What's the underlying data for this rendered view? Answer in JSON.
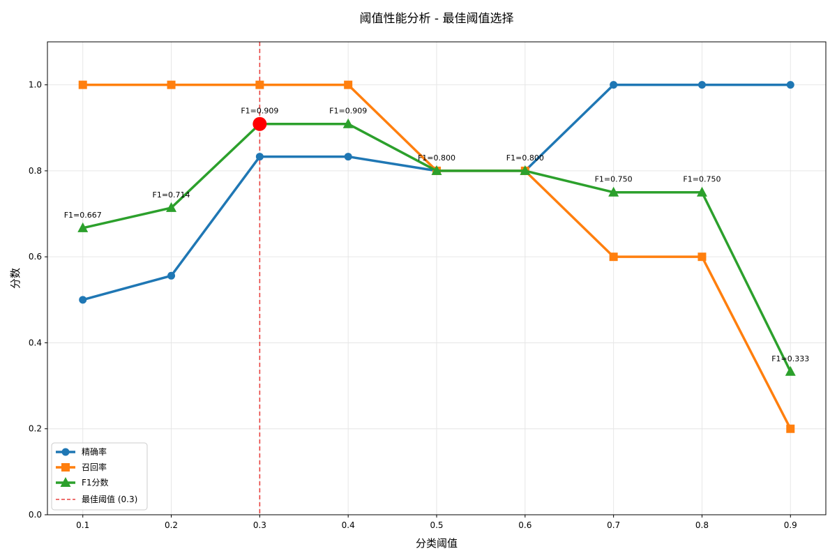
{
  "chart_data": {
    "type": "line",
    "title": "阈值性能分析 - 最佳阈值选择",
    "xlabel": "分类阈值",
    "ylabel": "分数",
    "x": [
      0.1,
      0.2,
      0.3,
      0.4,
      0.5,
      0.6,
      0.7,
      0.8,
      0.9
    ],
    "x_ticks": [
      "0.1",
      "0.2",
      "0.3",
      "0.4",
      "0.5",
      "0.6",
      "0.7",
      "0.8",
      "0.9"
    ],
    "y_ticks": [
      "0.0",
      "0.2",
      "0.4",
      "0.6",
      "0.8",
      "1.0"
    ],
    "xlim": [
      0.06,
      0.94
    ],
    "ylim": [
      0.0,
      1.1
    ],
    "grid": true,
    "legend_position": "lower-left",
    "series": [
      {
        "name": "精确率",
        "marker": "circle",
        "color": "#1f77b4",
        "values": [
          0.5,
          0.556,
          0.833,
          0.833,
          0.8,
          0.8,
          1.0,
          1.0,
          1.0
        ]
      },
      {
        "name": "召回率",
        "marker": "square",
        "color": "#ff7f0e",
        "values": [
          1.0,
          1.0,
          1.0,
          1.0,
          0.8,
          0.8,
          0.6,
          0.6,
          0.2
        ]
      },
      {
        "name": "F1分数",
        "marker": "triangle",
        "color": "#2ca02c",
        "values": [
          0.667,
          0.714,
          0.909,
          0.909,
          0.8,
          0.8,
          0.75,
          0.75,
          0.333
        ]
      }
    ],
    "annotations": [
      "F1=0.667",
      "F1=0.714",
      "F1=0.909",
      "F1=0.909",
      "F1=0.800",
      "F1=0.800",
      "F1=0.750",
      "F1=0.750",
      "F1=0.333"
    ],
    "threshold_line": {
      "x": 0.3,
      "label": "最佳阈值 (0.3)",
      "color": "#e8413f"
    },
    "best_point": {
      "x": 0.3,
      "y": 0.909,
      "color": "#ff0000"
    }
  }
}
